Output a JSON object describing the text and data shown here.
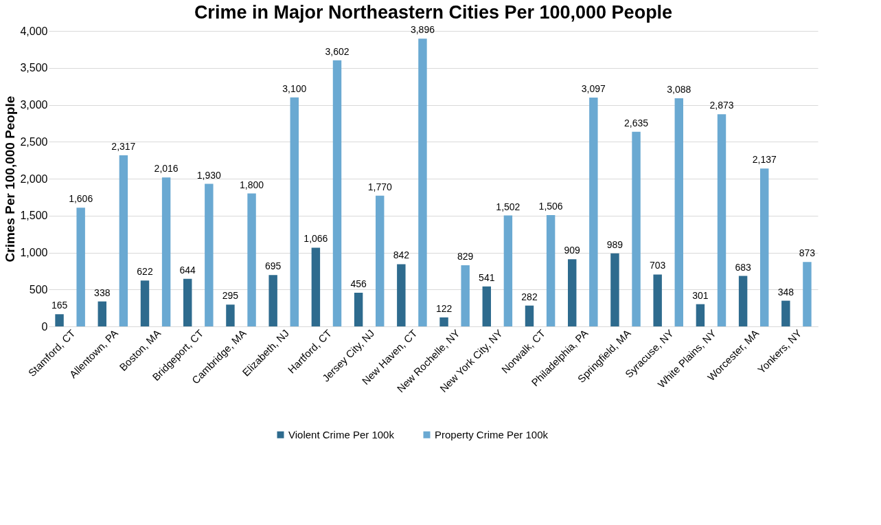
{
  "chart_data": {
    "type": "bar",
    "title": "Crime in Major Northeastern Cities Per 100,000 People",
    "ylabel": "Crimes Per 100,000 People",
    "categories": [
      "Stamford, CT",
      "Allentown, PA",
      "Boston, MA",
      "Bridgeport, CT",
      "Cambridge, MA",
      "Elizabeth, NJ",
      "Hartford, CT",
      "Jersey City, NJ",
      "New Haven, CT",
      "New Rochelle, NY",
      "New York City, NY",
      "Norwalk, CT",
      "Philadelphia, PA",
      "Springfield, MA",
      "Syracuse, NY",
      "White Plains, NY",
      "Worcester, MA",
      "Yonkers, NY"
    ],
    "series": [
      {
        "name": "Violent Crime Per 100k",
        "color": "#2e6b8e",
        "values": [
          165,
          338,
          622,
          644,
          295,
          695,
          1066,
          456,
          842,
          122,
          541,
          282,
          909,
          989,
          703,
          301,
          683,
          348
        ],
        "value_labels": [
          "165",
          "338",
          "622",
          "644",
          "295",
          "695",
          "1,066",
          "456",
          "842",
          "122",
          "541",
          "282",
          "909",
          "989",
          "703",
          "301",
          "683",
          "348"
        ]
      },
      {
        "name": "Property Crime Per 100k",
        "color": "#6aa9d2",
        "values": [
          1606,
          2317,
          2016,
          1930,
          1800,
          3100,
          3602,
          1770,
          3896,
          829,
          1502,
          1506,
          3097,
          2635,
          3088,
          2873,
          2137,
          873
        ],
        "value_labels": [
          "1,606",
          "2,317",
          "2,016",
          "1,930",
          "1,800",
          "3,100",
          "3,602",
          "1,770",
          "3,896",
          "829",
          "1,502",
          "1,506",
          "3,097",
          "2,635",
          "3,088",
          "2,873",
          "2,137",
          "873"
        ]
      }
    ],
    "ylim": [
      0,
      4000
    ],
    "yticks": [
      0,
      500,
      {
        "value": 1000,
        "label": "1,000"
      },
      {
        "value": 1500,
        "label": "1,500"
      },
      {
        "value": 2000,
        "label": "2,000"
      },
      {
        "value": 2500,
        "label": "2,500"
      },
      {
        "value": 3000,
        "label": "3,000"
      },
      {
        "value": 3500,
        "label": "3,500"
      },
      {
        "value": 4000,
        "label": "4,000"
      }
    ],
    "grid": "y",
    "legend": "bottom"
  }
}
